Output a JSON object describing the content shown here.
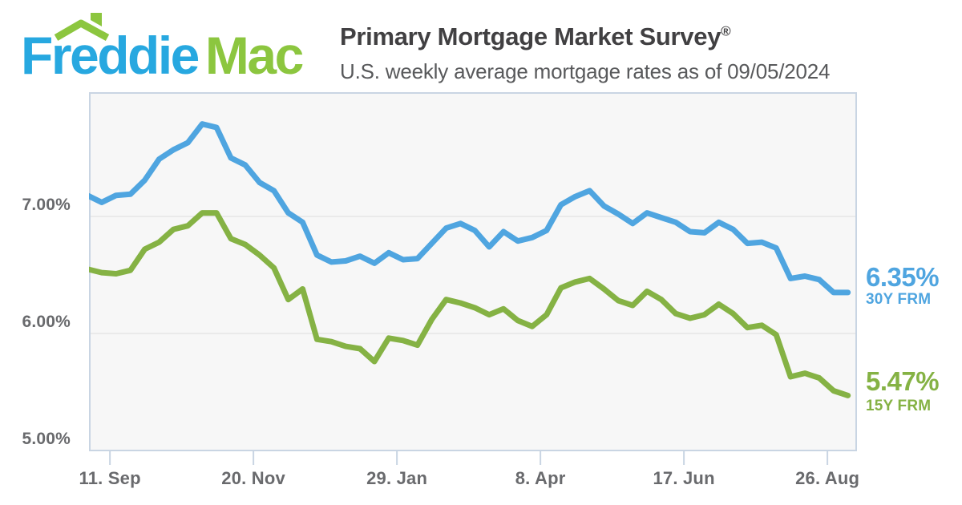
{
  "logo": {
    "word1": "Freddie",
    "word2": "Mac",
    "blue": "#27a8e0",
    "green": "#8cc63f"
  },
  "header": {
    "title": "Primary Mortgage Market Survey",
    "registered_mark": "®",
    "subtitle": "U.S. weekly average mortgage rates as of 09/05/2024"
  },
  "colors": {
    "plot_background": "#f7f7f7",
    "plot_border": "#c9d5e3",
    "gridline": "#e5e5e5",
    "axis_text": "#696a6d",
    "title_text": "#414042",
    "subtitle_text": "#58595b"
  },
  "chart_data": {
    "type": "line",
    "title": "Primary Mortgage Market Survey",
    "subtitle": "U.S. weekly average mortgage rates as of 09/05/2024",
    "x_unit": "weekly",
    "x_start_date": "2023-08-31",
    "x_end_date": "2024-09-05",
    "point_interval_days": 7,
    "x_ticks": {
      "labels": [
        "11. Sep",
        "20. Nov",
        "29. Jan",
        "8. Apr",
        "17. Jun",
        "26. Aug"
      ],
      "day_offsets": [
        11,
        81,
        151,
        221,
        291,
        361
      ]
    },
    "y_axis": {
      "tick_labels": [
        "7.00%",
        "6.00%",
        "5.00%"
      ],
      "tick_values": [
        7.0,
        6.0,
        5.0
      ],
      "grid_lines_at": [
        7.0,
        6.0
      ],
      "ylim": [
        4.95,
        8.05
      ],
      "unit": "percent"
    },
    "legend_position": "right-annotations",
    "series": [
      {
        "name": "30Y FRM",
        "color": "#4fa5e0",
        "current_value_label": "6.35%",
        "values": [
          7.18,
          7.12,
          7.18,
          7.19,
          7.31,
          7.49,
          7.57,
          7.63,
          7.79,
          7.76,
          7.5,
          7.44,
          7.29,
          7.22,
          7.03,
          6.95,
          6.67,
          6.61,
          6.62,
          6.66,
          6.6,
          6.69,
          6.63,
          6.64,
          6.77,
          6.9,
          6.94,
          6.88,
          6.74,
          6.87,
          6.79,
          6.82,
          6.88,
          7.1,
          7.17,
          7.22,
          7.09,
          7.02,
          6.94,
          7.03,
          6.99,
          6.95,
          6.87,
          6.86,
          6.95,
          6.89,
          6.77,
          6.78,
          6.73,
          6.47,
          6.49,
          6.46,
          6.35,
          6.35
        ]
      },
      {
        "name": "15Y FRM",
        "color": "#85b244",
        "current_value_label": "5.47%",
        "values": [
          6.55,
          6.52,
          6.51,
          6.54,
          6.72,
          6.78,
          6.89,
          6.92,
          7.03,
          7.03,
          6.81,
          6.76,
          6.67,
          6.56,
          6.29,
          6.38,
          5.95,
          5.93,
          5.89,
          5.87,
          5.76,
          5.96,
          5.94,
          5.9,
          6.12,
          6.29,
          6.26,
          6.22,
          6.16,
          6.21,
          6.11,
          6.06,
          6.16,
          6.39,
          6.44,
          6.47,
          6.38,
          6.28,
          6.24,
          6.36,
          6.29,
          6.17,
          6.13,
          6.16,
          6.25,
          6.17,
          6.05,
          6.07,
          5.99,
          5.63,
          5.66,
          5.62,
          5.51,
          5.47
        ]
      }
    ]
  }
}
